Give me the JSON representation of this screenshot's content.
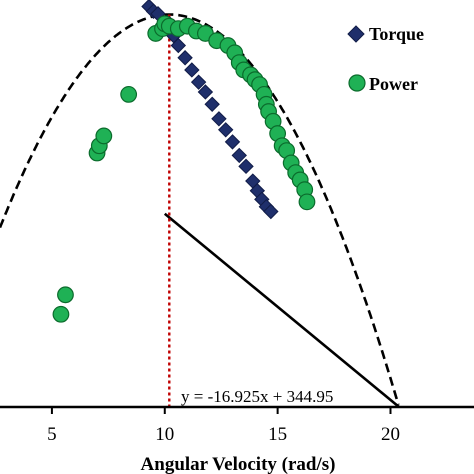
{
  "chart_data": {
    "type": "scatter",
    "xlabel": "Angular Velocity (rad/s)",
    "ylabel": "",
    "xlim": [
      2.7,
      23.7
    ],
    "ylim": [
      0,
      370
    ],
    "x_ticks": [
      5,
      10,
      15,
      20
    ],
    "legend": {
      "position": "top-right",
      "entries": [
        {
          "name": "Torque",
          "marker": "diamond",
          "color": "#1f2f6b"
        },
        {
          "name": "Power",
          "marker": "circle",
          "color": "#1fb155"
        }
      ]
    },
    "series": [
      {
        "name": "Torque",
        "marker": "diamond",
        "color": "#1f2f6b",
        "x": [
          9.3,
          9.5,
          9.7,
          10.2,
          10.4,
          10.6,
          10.9,
          11.2,
          11.5,
          11.8,
          12.1,
          12.4,
          12.7,
          13.0,
          13.3,
          13.6,
          13.9,
          14.1,
          14.3,
          14.5,
          14.7
        ],
        "y": [
          364.1,
          359.7,
          357.5,
          348.6,
          337.5,
          328.6,
          317.5,
          306.4,
          295.3,
          286.4,
          275.2,
          262.0,
          252.0,
          241.0,
          228.7,
          218.8,
          205.4,
          196.6,
          188.8,
          182.1,
          177.7
        ]
      },
      {
        "name": "Power",
        "marker": "circle",
        "color": "#1fb155",
        "x": [
          5.4,
          5.6,
          7.0,
          7.1,
          7.3,
          8.4,
          9.6,
          9.9,
          10.0,
          10.2,
          10.6,
          11.0,
          11.4,
          11.8,
          12.3,
          12.8,
          13.1,
          13.3,
          13.5,
          13.8,
          14.0,
          14.2,
          14.4,
          14.5,
          14.6,
          14.8,
          15.0,
          15.2,
          15.4,
          15.6,
          15.8,
          16.0,
          16.2,
          16.3
        ],
        "y": [
          84.3,
          102.0,
          230.9,
          237.5,
          246.4,
          284.2,
          339.6,
          344.0,
          348.4,
          346.2,
          344.0,
          346.2,
          341.8,
          339.6,
          333.0,
          328.6,
          322.0,
          313.1,
          306.4,
          302.0,
          297.6,
          293.1,
          284.2,
          275.2,
          268.6,
          259.7,
          248.6,
          237.5,
          233.1,
          221.9,
          213.1,
          206.4,
          197.6,
          186.5
        ]
      }
    ],
    "fits": [
      {
        "series": "Torque",
        "kind": "linear",
        "slope": -16.925,
        "intercept": 344.95,
        "style": "solid",
        "x_range": [
          10.0,
          20.38
        ]
      },
      {
        "series": "Power",
        "kind": "quadratic",
        "style": "dashed",
        "peak_x": 10.2,
        "peak_y": 356.8,
        "zero_x": 20.38
      }
    ],
    "vertical_marker": {
      "x": 10.2,
      "style": "dotted",
      "color": "#c00000"
    },
    "annotations": [
      {
        "text": "y = -16.925x + 344.95"
      }
    ]
  }
}
